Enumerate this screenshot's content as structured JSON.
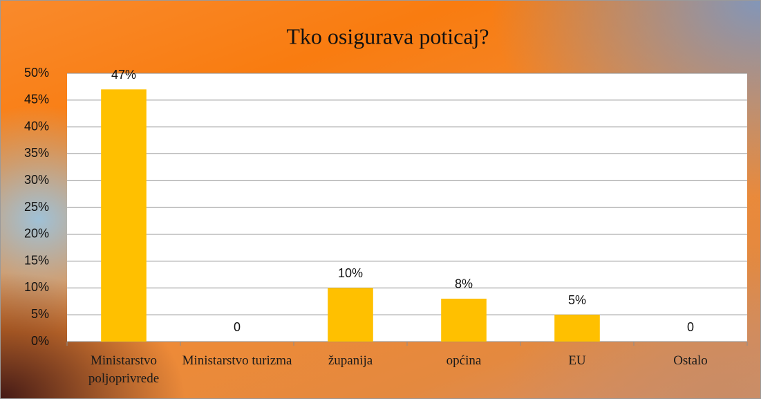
{
  "chart_data": {
    "type": "bar",
    "title": "Tko osigurava poticaj?",
    "categories": [
      "Ministarstvo poljoprivrede",
      "Ministarstvo turizma",
      "županija",
      "općina",
      "EU",
      "Ostalo"
    ],
    "values": [
      47,
      0,
      10,
      8,
      5,
      0
    ],
    "value_labels": [
      "47%",
      "0",
      "10%",
      "8%",
      "5%",
      "0"
    ],
    "color": "#ffc000",
    "ylim": [
      0,
      50
    ],
    "yticks": [
      {
        "value": 0,
        "label": "0%"
      },
      {
        "value": 5,
        "label": "5%"
      },
      {
        "value": 10,
        "label": "10%"
      },
      {
        "value": 15,
        "label": "15%"
      },
      {
        "value": 20,
        "label": "20%"
      },
      {
        "value": 25,
        "label": "25%"
      },
      {
        "value": 30,
        "label": "30%"
      },
      {
        "value": 35,
        "label": "35%"
      },
      {
        "value": 40,
        "label": "40%"
      },
      {
        "value": 45,
        "label": "45%"
      },
      {
        "value": 50,
        "label": "50%"
      }
    ],
    "grid": true
  }
}
